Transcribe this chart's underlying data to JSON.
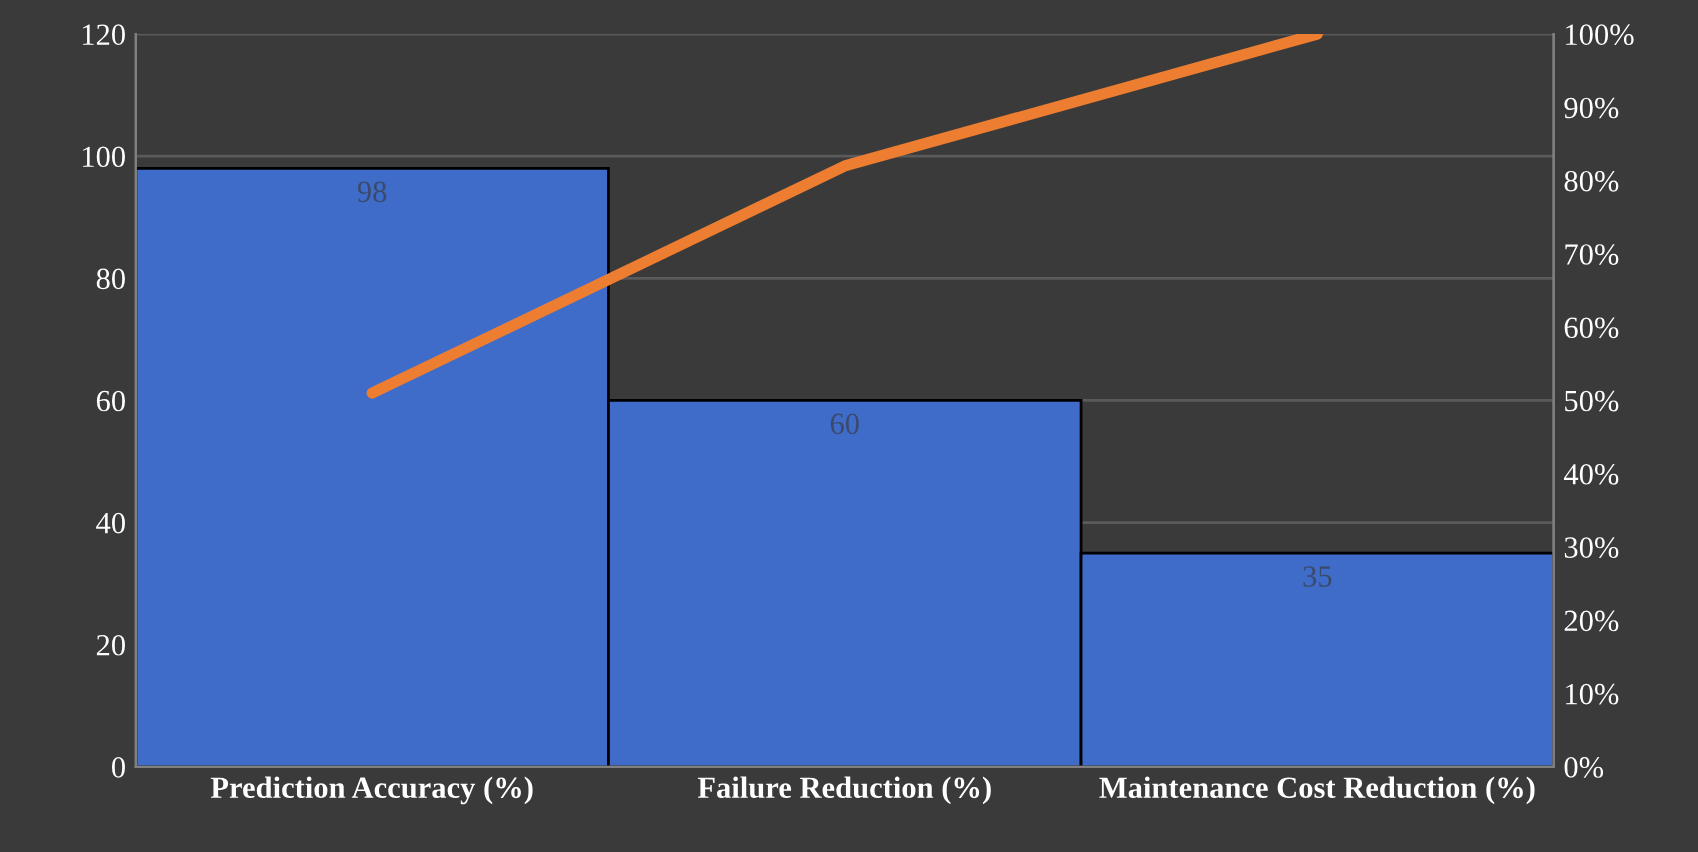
{
  "chart_data": {
    "type": "bar",
    "categories": [
      "Prediction Accuracy (%)",
      "Failure Reduction (%)",
      "Maintenance Cost Reduction (%)"
    ],
    "series": [
      {
        "color": "#3f6cc9",
        "values": [
          98,
          60,
          35
        ]
      },
      {
        "type": "line",
        "axis": "y2",
        "color": "#ed7d31",
        "values": [
          51,
          82,
          100
        ]
      }
    ],
    "value_labels": [
      "98",
      "60",
      "35"
    ],
    "ylim": [
      0,
      120
    ],
    "yticks": [
      0,
      20,
      40,
      60,
      80,
      100,
      120
    ],
    "y2lim": [
      0,
      100
    ],
    "y2ticks": [
      {
        "value": 0,
        "label": "0%"
      },
      {
        "value": 10,
        "label": "10%"
      },
      {
        "value": 20,
        "label": "20%"
      },
      {
        "value": 30,
        "label": "30%"
      },
      {
        "value": 40,
        "label": "40%"
      },
      {
        "value": 50,
        "label": "50%"
      },
      {
        "value": 60,
        "label": "60%"
      },
      {
        "value": 70,
        "label": "70%"
      },
      {
        "value": 80,
        "label": "80%"
      },
      {
        "value": 90,
        "label": "90%"
      },
      {
        "value": 100,
        "label": "100%"
      }
    ],
    "grid": "y",
    "marker": "none"
  }
}
